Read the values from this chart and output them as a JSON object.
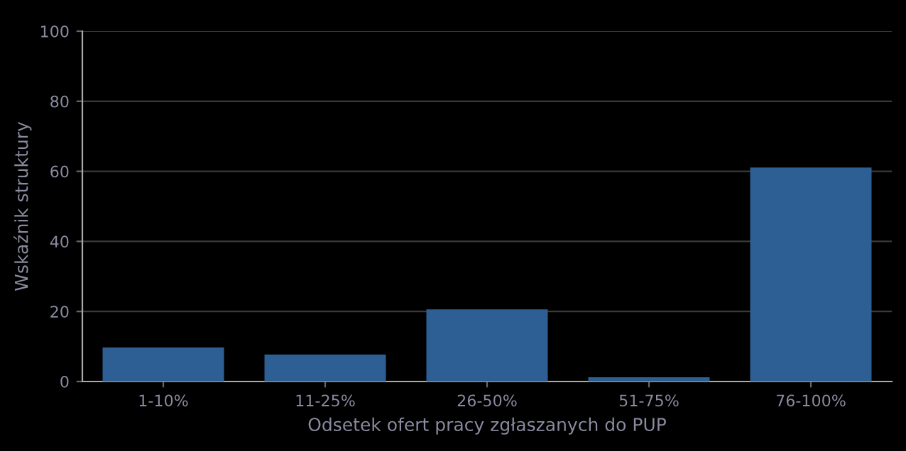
{
  "chart_data": {
    "type": "bar",
    "xlabel": "Odsetek ofert pracy zgłaszanych do PUP",
    "ylabel": "Wskaźnik struktury",
    "categories": [
      "1-10%",
      "11-25%",
      "26-50%",
      "51-75%",
      "76-100%"
    ],
    "values": [
      9.7,
      7.7,
      20.6,
      1.2,
      61.1
    ],
    "color": "#2d5f94",
    "ylim": [
      0,
      100
    ],
    "yticks": [
      0,
      20,
      40,
      60,
      80,
      100
    ],
    "grid": "y"
  }
}
